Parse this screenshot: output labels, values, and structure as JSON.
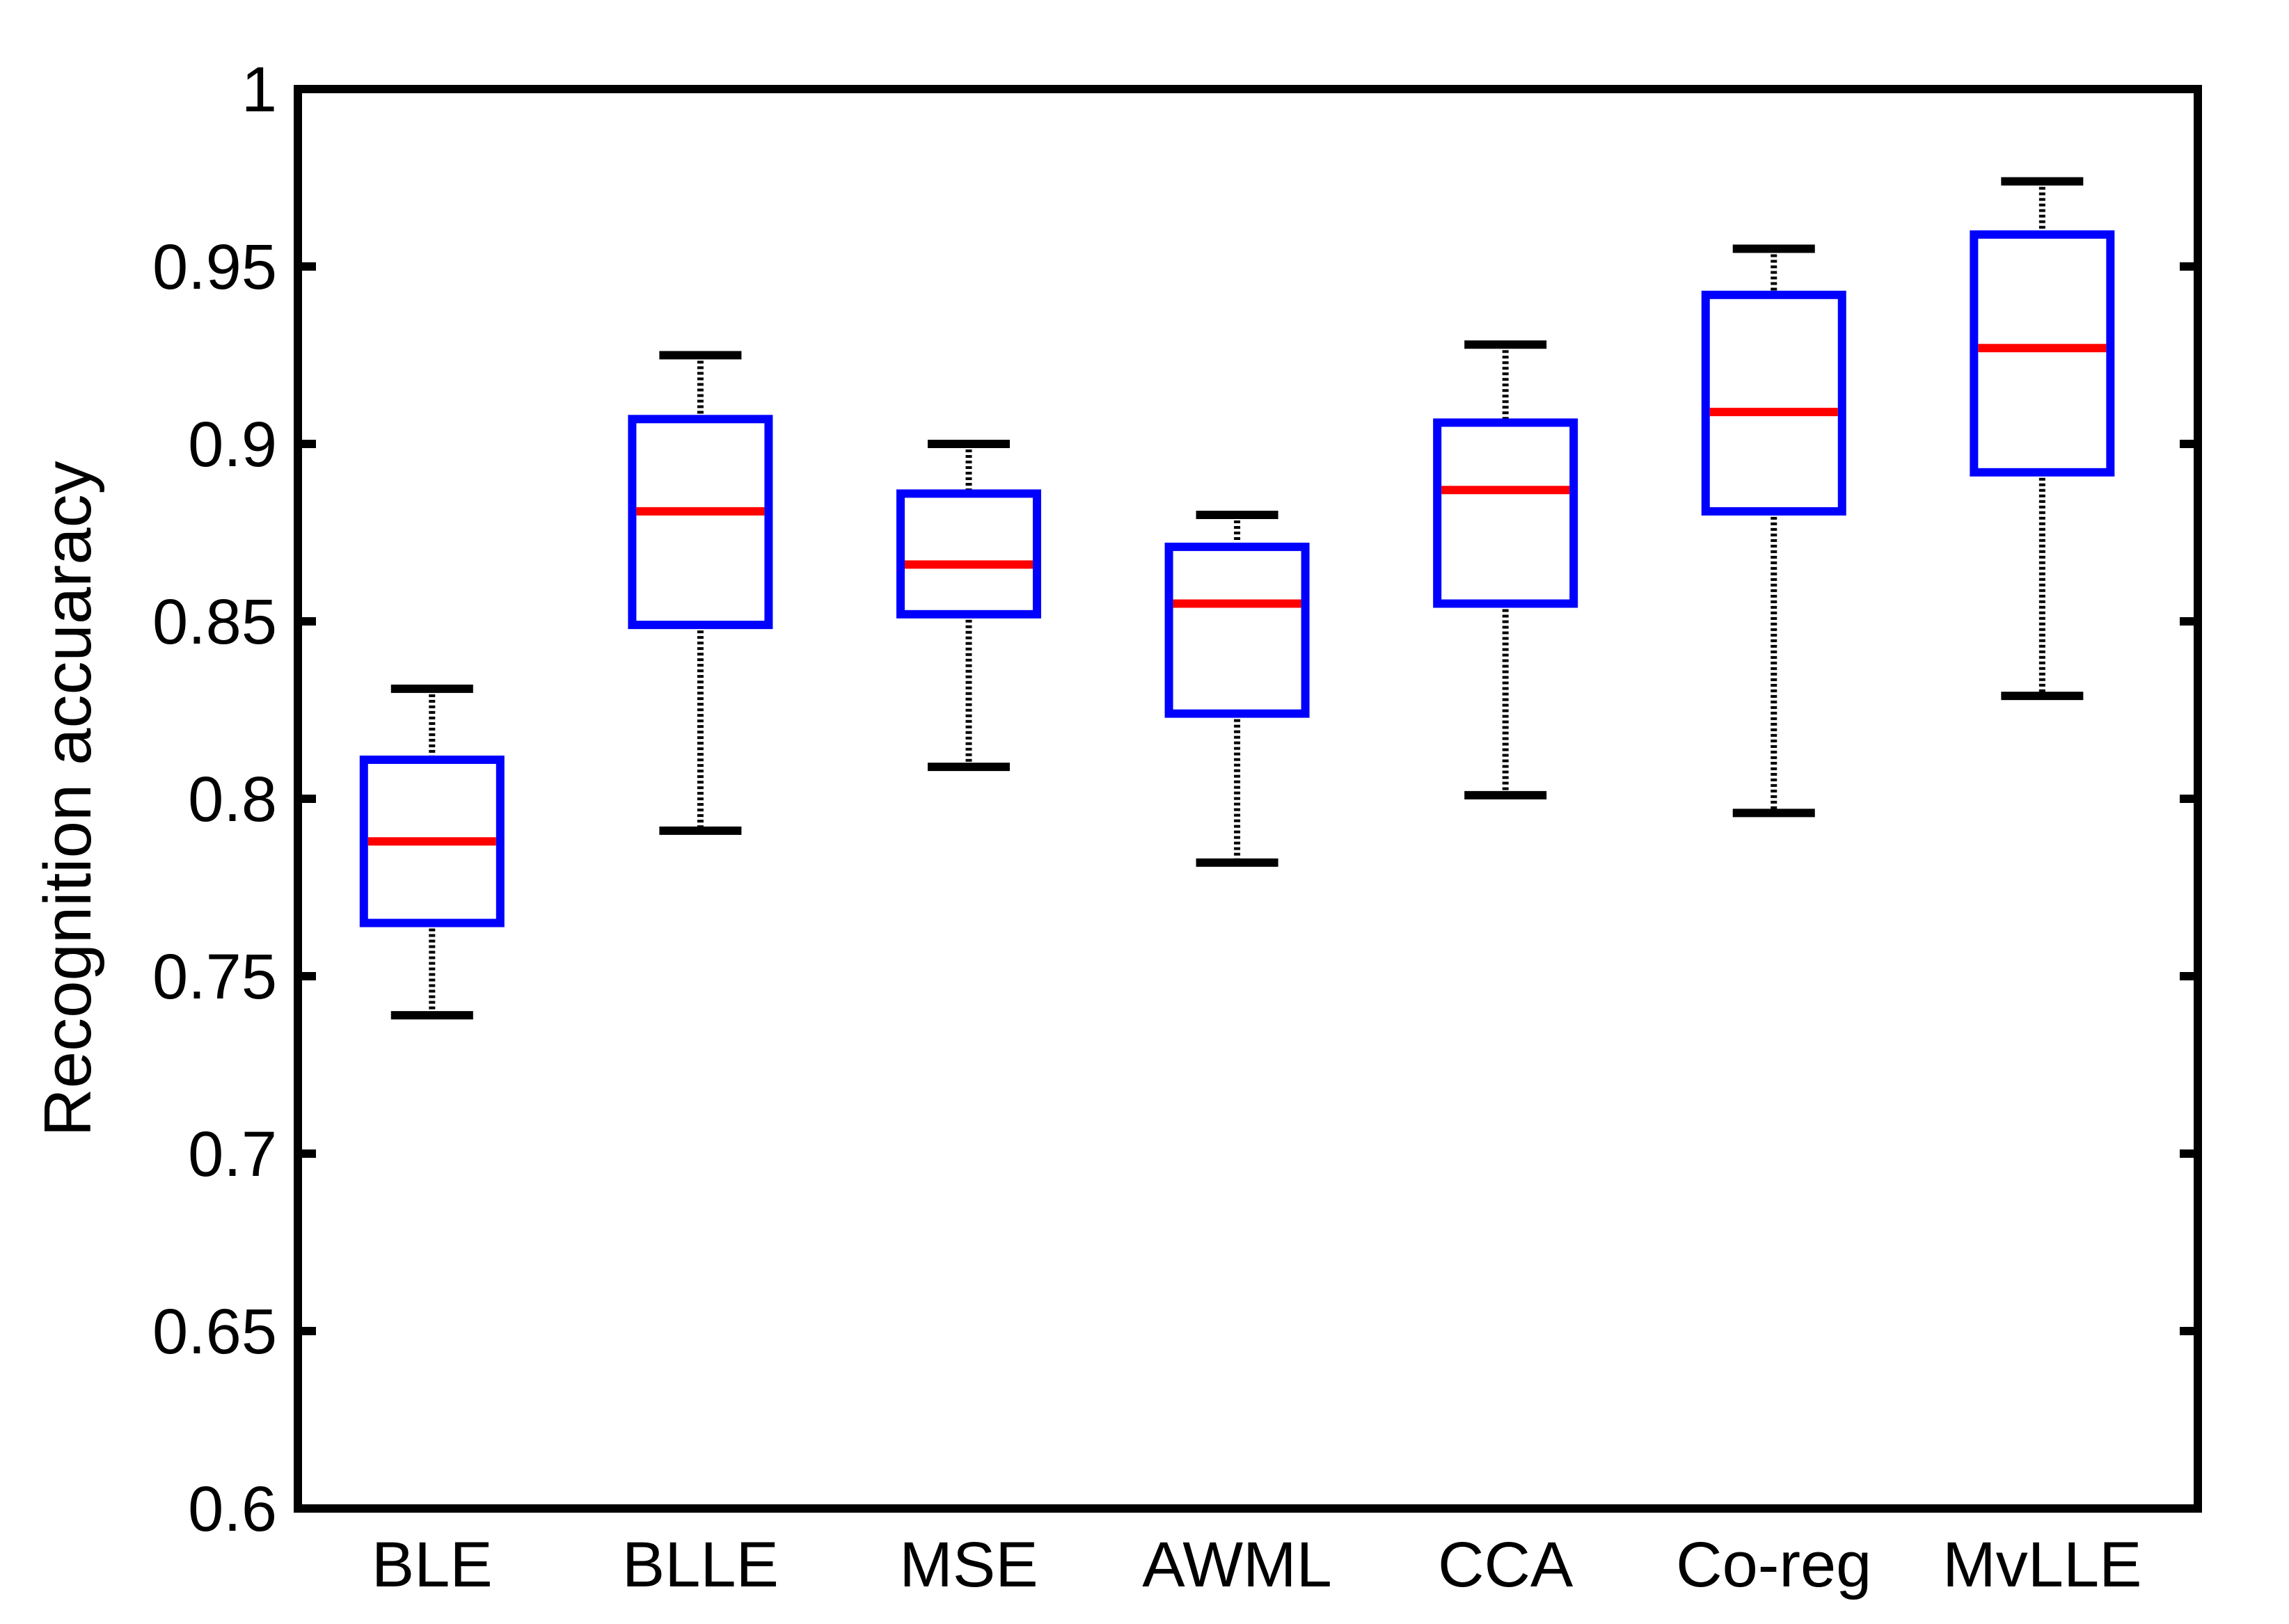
{
  "chart_data": {
    "type": "box",
    "title": "",
    "xlabel": "",
    "ylabel": "Recognition accuaracy",
    "ylim": [
      0.6,
      1.0
    ],
    "yticks": [
      "0.6",
      "0.65",
      "0.7",
      "0.75",
      "0.8",
      "0.85",
      "0.9",
      "0.95",
      "1"
    ],
    "grid": false,
    "categories": [
      "BLE",
      "BLLE",
      "MSE",
      "AWML",
      "CCA",
      "Co-reg",
      "MvLLE"
    ],
    "boxes": [
      {
        "label": "BLE",
        "whisker_low": 0.739,
        "q1": 0.765,
        "median": 0.788,
        "q3": 0.811,
        "whisker_high": 0.831
      },
      {
        "label": "BLLE",
        "whisker_low": 0.791,
        "q1": 0.849,
        "median": 0.881,
        "q3": 0.907,
        "whisker_high": 0.925
      },
      {
        "label": "MSE",
        "whisker_low": 0.809,
        "q1": 0.852,
        "median": 0.866,
        "q3": 0.886,
        "whisker_high": 0.9
      },
      {
        "label": "AWML",
        "whisker_low": 0.782,
        "q1": 0.824,
        "median": 0.855,
        "q3": 0.871,
        "whisker_high": 0.88
      },
      {
        "label": "CCA",
        "whisker_low": 0.801,
        "q1": 0.855,
        "median": 0.887,
        "q3": 0.906,
        "whisker_high": 0.928
      },
      {
        "label": "Co-reg",
        "whisker_low": 0.796,
        "q1": 0.881,
        "median": 0.909,
        "q3": 0.942,
        "whisker_high": 0.955
      },
      {
        "label": "MvLLE",
        "whisker_low": 0.829,
        "q1": 0.892,
        "median": 0.927,
        "q3": 0.959,
        "whisker_high": 0.974
      }
    ],
    "colors": {
      "box": "#0000ff",
      "median": "#ff0000",
      "whisker": "#000000",
      "axes": "#000000"
    }
  }
}
